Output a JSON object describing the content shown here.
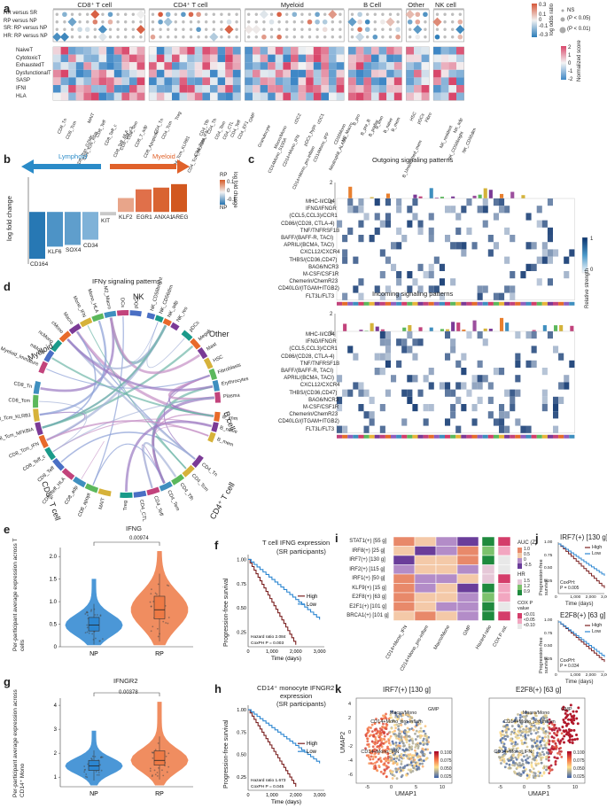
{
  "panel_labels": [
    "a",
    "b",
    "c",
    "d",
    "e",
    "f",
    "g",
    "h",
    "i",
    "j",
    "k"
  ],
  "panel_a": {
    "groups": [
      "CD8⁺ T cell",
      "CD4⁺ T cell",
      "Myeloid",
      "B Cell",
      "Other",
      "NK cell"
    ],
    "comparisons": [
      "HR versus SR",
      "RP versus NP",
      "SR: RP versus NP",
      "HR: RP versus NP"
    ],
    "programs": [
      "NaiveT",
      "CytotoxicT",
      "ExhaustedT",
      "DysfunctionalT",
      "SASP",
      "IFNI",
      "HLA"
    ],
    "cd8_cells": [
      "CD8_Tn",
      "CD8_Tcm",
      "CD8_Tcm_GZMK",
      "CD8_Tcm_RPB",
      "MAIT",
      "CD8_Teff",
      "CD8_Teff_c",
      "CD8_Teff_HLA",
      "CD8_Teff_c2",
      "CD8_Tem",
      "CD8_T_adp",
      "CD8_Apoptotic"
    ],
    "cd4_cells": [
      "CD4_Tn",
      "CD4_Tcm",
      "CD4_Tcm_KLRB1",
      "Treg",
      "CD4_Tcm_NFKBIA",
      "CD4_Tcm_IFN",
      "CD4_Tfh",
      "CD4_Th",
      "CD4_Tem",
      "CD4_CTL",
      "CD4_Teff",
      "CD4_EF1"
    ],
    "myeloid_cells": [
      "GMP",
      "Granulocyte",
      "CD14Mono_S100A",
      "Macro/Mono",
      "CD14+Mono_IFN",
      "CD14+Mono_pro-inflam",
      "cDC2",
      "pDCs_hypo",
      "CD14Mono_IPP",
      "cDC1",
      "Neutrophil_ALAD1",
      "CD16Mono",
      "M2_Macro"
    ],
    "b_cells": [
      "B_pro",
      "B_pre_B",
      "B_prefiar",
      "B_imm",
      "B_naive",
      "B_mem",
      "B_Unswitched_mem"
    ],
    "other_cells": [
      "HSC",
      "pDCs",
      "Fibro"
    ],
    "nk_cells": [
      "NK_resident",
      "NK_CD56bright",
      "NK_adp",
      "NK_CD56dim"
    ],
    "legend_top": {
      "title": "log odds ratio",
      "ticks": [
        "0.3",
        "0.2",
        "0.1",
        "0",
        "-0.1",
        "-0.2",
        "-0.3"
      ],
      "ns": "NS",
      "p05": "(P < 0.05)",
      "p01": "(P < 0.01)"
    },
    "legend_bottom": {
      "title": "Normalized score",
      "ticks": [
        "2",
        "1",
        "0",
        "-1",
        "-2"
      ]
    }
  },
  "panel_b": {
    "title_lymphoid": "Lymphoid",
    "title_myeloid": "Myeloid",
    "ylabel": "log fold change",
    "xlabel": "IFNγ signaling patterns",
    "legend_title": "log fold change",
    "legend_rp": "RP",
    "legend_np": "NP",
    "legend_ticks": [
      "0.1",
      "0",
      "-0.1"
    ],
    "chart_data": {
      "type": "bar",
      "categories": [
        "CD164",
        "KLF6",
        "SOX4",
        "CD34",
        "KIT",
        "KLF2",
        "EGR1",
        "ANXA1",
        "AREG"
      ],
      "values": [
        -0.27,
        -0.2,
        -0.19,
        -0.16,
        -0.02,
        0.08,
        0.13,
        0.14,
        0.16
      ],
      "colors": [
        "#2778b4",
        "#4d93c6",
        "#5f9ecc",
        "#7fb2d8",
        "#c9c9c9",
        "#e8a58a",
        "#e0704a",
        "#d96432",
        "#d2581f"
      ],
      "ylabel": "log fold change",
      "ylim": [
        -0.3,
        0.2
      ]
    }
  },
  "panel_c": {
    "outgoing_title": "Outgoing signaling patterns",
    "incoming_title": "Incoming signaling patterns",
    "pathways": [
      "MHC-II/CD4",
      "IFNG/IFNGR",
      "(CCL5,CCL3)/CCR1",
      "CD86/(CD28, CTLA-4)",
      "TNF/TNFRSF1B",
      "BAFF/(BAFF-R, TACI)",
      "APRIL/(BCMA, TACI)",
      "CXCL12/CXCR4",
      "THBS/(CD36,CD47)",
      "BAG6/NCR3",
      "M-CSF/CSF1R",
      "Chemerin/ChemR23",
      "CD40LG/(ITGAM+ITGB2)",
      "FLT3L/FLT3"
    ],
    "legend_title": "Relative strength",
    "legend_ticks": [
      "1",
      "0"
    ],
    "axis_ticks": [
      "2",
      "0"
    ]
  },
  "panel_d": {
    "sectors": [
      "Myeloid",
      "NK",
      "Other",
      "B cell",
      "CD4⁺ T cell",
      "CD8⁺ T cell"
    ],
    "myeloid_labels": [
      "Myeloid_Immature",
      "mMono",
      "ncMono",
      "cMono",
      "Macro",
      "Mono_IFN",
      "Mono_HLA",
      "M2_Macro",
      "DCs",
      "pDCs"
    ],
    "nk_labels": [
      "NK_CD56bright",
      "NK_CD56dim",
      "NK_adp",
      "NK_res"
    ],
    "other_labels": [
      "pDCs",
      "Megak",
      "Mast",
      "HSC",
      "Fibroblasts",
      "Erythrocytes",
      "Plasma"
    ],
    "b_labels": [
      "B_imm",
      "B_naive",
      "B_mem"
    ],
    "cd4_labels": [
      "CD4_Tn",
      "CD4_Tcm",
      "CD4_Tfh",
      "CD4_Tem",
      "CD4_Teff",
      "CD4_CTL",
      "Treg"
    ],
    "cd8_labels": [
      "MAIT",
      "CD8_apopt",
      "CD8_adp",
      "CD8_Teff_HLA",
      "CD8_Teff",
      "CD8_Teff_c",
      "CD8_Tcm_IFN",
      "CD8_Tcm_NFKBIA",
      "CD8_Tcm_KLRB1",
      "CD8_Tcm",
      "CD8_Tn"
    ]
  },
  "panel_e": {
    "title": "IFNG",
    "pvalue": "0.00974",
    "ylabel": "Per-participant average expression across T cells",
    "groups": [
      "NP",
      "RP"
    ],
    "yticks": [
      "0",
      "0.5",
      "1.0",
      "1.5",
      "2.0"
    ],
    "chart_data": {
      "type": "scatter",
      "categories": [
        "NP",
        "RP"
      ],
      "medians": [
        0.48,
        0.82
      ],
      "q1": [
        0.35,
        0.62
      ],
      "q3": [
        0.65,
        1.12
      ],
      "ylim": [
        0,
        2.2
      ]
    }
  },
  "panel_f": {
    "title": "T cell IFNG expression",
    "subtitle": "(SR participants)",
    "ylabel": "Progression-free survival",
    "xlabel": "Time (days)",
    "legend_high": "High",
    "legend_low": "Low",
    "hazard": "Hazard ratio 2.084",
    "coxph": "CoxPH P = 0.003",
    "xticks": [
      "0",
      "1,000",
      "2,000",
      "3,000"
    ],
    "yticks": [
      "1.00",
      "0.75",
      "0.50",
      "0.25"
    ]
  },
  "panel_g": {
    "title": "IFNGR2",
    "pvalue": "0.00378",
    "ylabel": "Per-participant average expression across CD14⁺ Mono",
    "groups": [
      "NP",
      "RP"
    ],
    "yticks": [
      "1",
      "2",
      "3",
      "4"
    ],
    "chart_data": {
      "type": "scatter",
      "categories": [
        "NP",
        "RP"
      ],
      "medians": [
        1.47,
        1.7
      ],
      "q1": [
        1.28,
        1.5
      ],
      "q3": [
        1.7,
        2.1
      ],
      "ylim": [
        0.6,
        4.3
      ]
    }
  },
  "panel_h": {
    "title": "CD14⁺ monocyte IFNGR2",
    "title2": "expression",
    "subtitle": "(SR participants)",
    "ylabel": "Progression-free survival",
    "xlabel": "Time (days)",
    "legend_high": "High",
    "legend_low": "Low",
    "hazard": "Hazard ratio 1.673",
    "coxph": "CoxPH P = 0.045",
    "xticks": [
      "0",
      "1,000",
      "2,000",
      "3,000"
    ],
    "yticks": [
      "1.00",
      "0.75",
      "0.50",
      "0.25"
    ]
  },
  "panel_i": {
    "rows": [
      "STAT1(+) [55 g]",
      "IRF8(+) [25 g]",
      "IRF7(+) [130 g]",
      "IRF2(+) [115 g]",
      "IRF1(+) [50 g]",
      "KLF9(+) [15 g]",
      "E2F8(+) [63 g]",
      "E2F1(+) [101 g]",
      "BRCA1(+) [101 g]"
    ],
    "cols": [
      "CD14+Mono_IFN",
      "CD14+Mono_pro-inflam",
      "Macro/Mono",
      "GMP",
      "Hazard ratio",
      "COX P val."
    ],
    "auc_title": "AUC (Z)",
    "auc_ticks": [
      "1.0",
      "0.5",
      "0",
      "-0.5"
    ],
    "hr_title": "HR",
    "hr_ticks": [
      "1.5",
      "1.2",
      "0.9"
    ],
    "cox_title": "COX P value",
    "cox_ticks": [
      "<0.01",
      "<0.05",
      "<0.10"
    ]
  },
  "panel_j": {
    "top_title": "IRF7(+) [130 g]",
    "bottom_title": "E2F8(+) [63 g]",
    "legend_high": "High",
    "legend_low": "Low",
    "top_cox": "CoxPH:",
    "top_p": "P = 0.005",
    "bottom_cox": "CoxPH:",
    "bottom_p": "P = 0.034",
    "ylabel": "Progression-free survival",
    "xlabel": "Time (days)",
    "xticks": [
      "0",
      "1,000",
      "2,000",
      "3,000"
    ],
    "yticks": [
      "1.00",
      "0.75",
      "0.50",
      "0.25"
    ]
  },
  "panel_k": {
    "left_title": "IRF7(+) [130 g]",
    "right_title": "E2F8(+) [63 g]",
    "xlabel": "UMAP1",
    "ylabel": "UMAP2",
    "xticks": [
      "-5",
      "0",
      "5",
      "10"
    ],
    "yticks": [
      "4",
      "2",
      "0",
      "-2",
      "-4",
      "-6"
    ],
    "labels": [
      "CD14+Mono_pro-inflam",
      "CD14+Mono_IFN",
      "Macro/Mono",
      "GMP"
    ],
    "legend_ticks": [
      "0.100",
      "0.075",
      "0.050",
      "0.025"
    ]
  }
}
